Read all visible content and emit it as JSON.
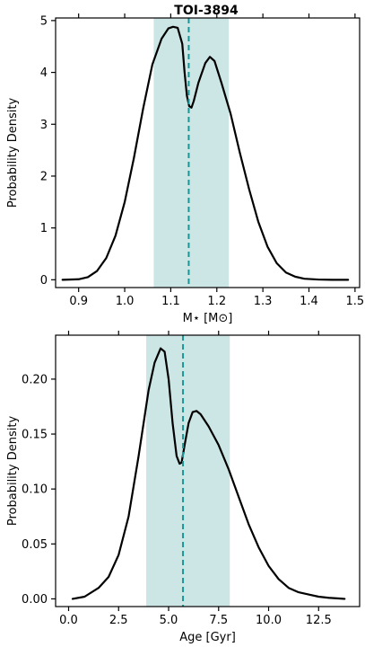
{
  "chart_data": [
    {
      "type": "line",
      "title": "TOI-3894",
      "xlabel": "M⋆ [M⊙]",
      "ylabel": "Probability Density",
      "xlim": [
        0.85,
        1.51
      ],
      "ylim": [
        -0.15,
        5.05
      ],
      "xticks": [
        0.9,
        1.0,
        1.1,
        1.2,
        1.3,
        1.4,
        1.5
      ],
      "xtick_labels": [
        "0.9",
        "1.0",
        "1.1",
        "1.2",
        "1.3",
        "1.4",
        "1.5"
      ],
      "yticks": [
        0,
        1,
        2,
        3,
        4,
        5
      ],
      "ytick_labels": [
        "0",
        "1",
        "2",
        "3",
        "4",
        "5"
      ],
      "shaded_interval": [
        1.063,
        1.226
      ],
      "shade_color": "#cce6e6",
      "median": 1.139,
      "median_color": "#1a9696",
      "line_color": "#000000",
      "series": [
        {
          "x": [
            0.865,
            0.9,
            0.92,
            0.94,
            0.96,
            0.98,
            1.0,
            1.02,
            1.04,
            1.06,
            1.08,
            1.095,
            1.105,
            1.115,
            1.125,
            1.13,
            1.135,
            1.14,
            1.145,
            1.15,
            1.16,
            1.175,
            1.185,
            1.195,
            1.21,
            1.23,
            1.25,
            1.27,
            1.29,
            1.31,
            1.33,
            1.35,
            1.37,
            1.39,
            1.42,
            1.45,
            1.485
          ],
          "y": [
            0.0,
            0.01,
            0.05,
            0.17,
            0.42,
            0.85,
            1.5,
            2.35,
            3.3,
            4.15,
            4.65,
            4.85,
            4.88,
            4.86,
            4.55,
            4.0,
            3.55,
            3.35,
            3.32,
            3.45,
            3.8,
            4.18,
            4.3,
            4.22,
            3.8,
            3.2,
            2.45,
            1.75,
            1.12,
            0.64,
            0.32,
            0.14,
            0.06,
            0.02,
            0.005,
            0.0,
            0.0
          ]
        }
      ]
    },
    {
      "type": "line",
      "title": "",
      "xlabel": "Age [Gyr]",
      "ylabel": "Probability Density",
      "xlim": [
        -0.65,
        14.55
      ],
      "ylim": [
        -0.007,
        0.24
      ],
      "xticks": [
        0.0,
        2.5,
        5.0,
        7.5,
        10.0,
        12.5
      ],
      "xtick_labels": [
        "0.0",
        "2.5",
        "5.0",
        "7.5",
        "10.0",
        "12.5"
      ],
      "yticks": [
        0.0,
        0.05,
        0.1,
        0.15,
        0.2
      ],
      "ytick_labels": [
        "0.00",
        "0.05",
        "0.10",
        "0.15",
        "0.20"
      ],
      "shaded_interval": [
        3.88,
        8.06
      ],
      "shade_color": "#cce6e6",
      "median": 5.72,
      "median_color": "#1a9696",
      "line_color": "#000000",
      "series": [
        {
          "x": [
            0.2,
            0.8,
            1.5,
            2.0,
            2.5,
            3.0,
            3.5,
            4.0,
            4.3,
            4.6,
            4.8,
            5.0,
            5.2,
            5.4,
            5.55,
            5.65,
            5.8,
            6.0,
            6.2,
            6.4,
            6.6,
            7.0,
            7.5,
            8.0,
            8.5,
            9.0,
            9.5,
            10.0,
            10.5,
            11.0,
            11.5,
            12.0,
            12.5,
            13.0,
            13.8
          ],
          "y": [
            0.0,
            0.002,
            0.01,
            0.02,
            0.04,
            0.075,
            0.13,
            0.19,
            0.215,
            0.228,
            0.225,
            0.2,
            0.16,
            0.13,
            0.123,
            0.124,
            0.14,
            0.16,
            0.17,
            0.171,
            0.168,
            0.157,
            0.14,
            0.118,
            0.093,
            0.068,
            0.047,
            0.03,
            0.018,
            0.01,
            0.006,
            0.004,
            0.002,
            0.001,
            0.0
          ]
        }
      ]
    }
  ]
}
